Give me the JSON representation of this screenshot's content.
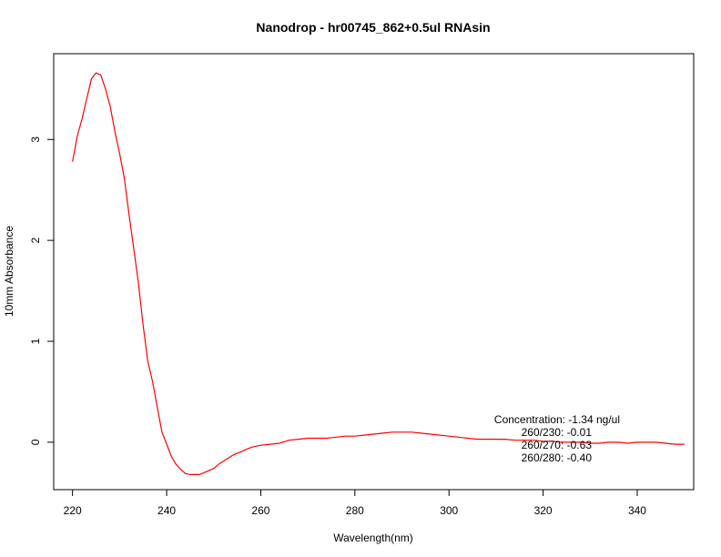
{
  "chart_data": {
    "type": "line",
    "title": "Nanodrop - hr00745_862+0.5ul RNAsin",
    "xlabel": "Wavelength(nm)",
    "ylabel": "10mm Absorbance",
    "xlim": [
      216,
      352
    ],
    "ylim": [
      -0.47,
      3.85
    ],
    "x_ticks": [
      220,
      240,
      260,
      280,
      300,
      320,
      340
    ],
    "y_ticks": [
      0,
      1,
      2,
      3
    ],
    "grid": false,
    "legend": "none",
    "series_color": "#ff0000",
    "series": [
      {
        "x": [
          220,
          221,
          222,
          223,
          224,
          225,
          226,
          227,
          228,
          229,
          230,
          231,
          232,
          233,
          234,
          235,
          236,
          237,
          238,
          239,
          240,
          241,
          242,
          243,
          244,
          245,
          246,
          247,
          248,
          249,
          250,
          251,
          252,
          253,
          254,
          255,
          256,
          257,
          258,
          259,
          260,
          262,
          264,
          266,
          268,
          270,
          272,
          274,
          276,
          278,
          280,
          282,
          284,
          286,
          288,
          290,
          292,
          294,
          296,
          298,
          300,
          302,
          304,
          306,
          308,
          310,
          312,
          314,
          316,
          318,
          320,
          322,
          324,
          326,
          328,
          330,
          332,
          334,
          336,
          338,
          340,
          342,
          344,
          346,
          348,
          350
        ],
        "values": [
          2.78,
          3.03,
          3.2,
          3.4,
          3.6,
          3.66,
          3.64,
          3.5,
          3.33,
          3.08,
          2.86,
          2.62,
          2.26,
          1.92,
          1.58,
          1.16,
          0.8,
          0.6,
          0.35,
          0.1,
          -0.02,
          -0.14,
          -0.22,
          -0.27,
          -0.31,
          -0.32,
          -0.32,
          -0.32,
          -0.3,
          -0.28,
          -0.26,
          -0.22,
          -0.19,
          -0.16,
          -0.13,
          -0.11,
          -0.09,
          -0.07,
          -0.05,
          -0.04,
          -0.03,
          -0.02,
          -0.01,
          0.02,
          0.03,
          0.04,
          0.04,
          0.04,
          0.05,
          0.06,
          0.06,
          0.07,
          0.08,
          0.09,
          0.1,
          0.1,
          0.1,
          0.09,
          0.08,
          0.07,
          0.06,
          0.05,
          0.04,
          0.03,
          0.03,
          0.03,
          0.03,
          0.02,
          0.02,
          0.02,
          0.01,
          0.01,
          0.0,
          0.0,
          0.0,
          -0.01,
          -0.01,
          0.0,
          0.0,
          -0.01,
          0.0,
          0.0,
          0.0,
          -0.01,
          -0.02,
          -0.02
        ]
      }
    ],
    "annotation": {
      "concentration": "Concentration: -1.34 ng/ul",
      "r230": "260/230: -0.01",
      "r270": "260/270: -0.63",
      "r280": "260/280: -0.40"
    }
  }
}
